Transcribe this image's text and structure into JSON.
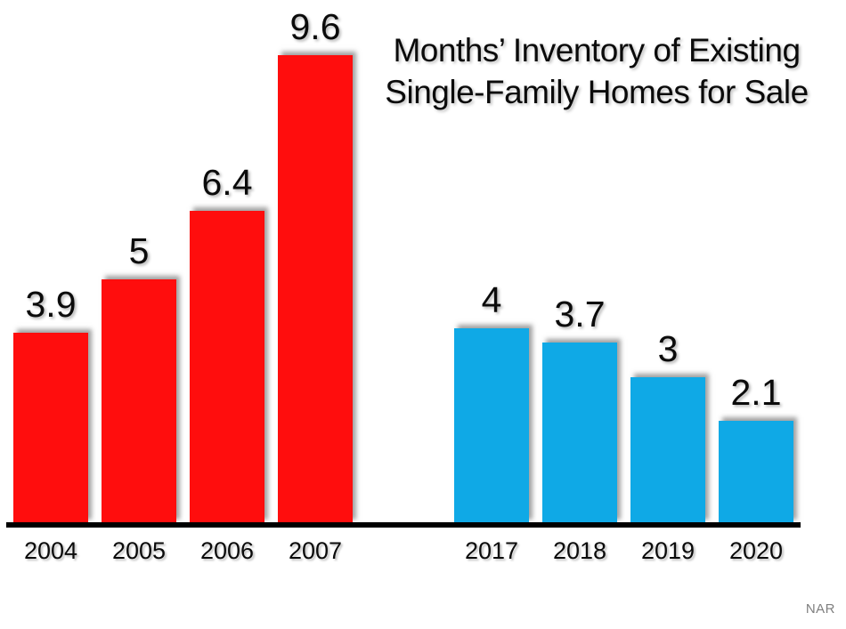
{
  "title": {
    "line1": "Months’ Inventory of Existing",
    "line2": "Single-Family Homes for Sale"
  },
  "source": "NAR",
  "colors": {
    "red_bar": "#FF0D0D",
    "blue_bar": "#0FA9E6",
    "axis": "#000000",
    "label_text": "#0B0B0B",
    "source_text": "#7F7F7F"
  },
  "chart_data": {
    "type": "bar",
    "title": "Months’ Inventory of Existing Single-Family Homes for Sale",
    "xlabel": "",
    "ylabel": "",
    "ylim": [
      0,
      10
    ],
    "grid": false,
    "legend_position": "none",
    "axis_shown": "x-baseline-only",
    "source": "NAR",
    "series": [
      {
        "name": "2004-2007",
        "color": "#FF0D0D",
        "points": [
          {
            "x": "2004",
            "y": 3.9,
            "label": "3.9"
          },
          {
            "x": "2005",
            "y": 5,
            "label": "5"
          },
          {
            "x": "2006",
            "y": 6.4,
            "label": "6.4"
          },
          {
            "x": "2007",
            "y": 9.6,
            "label": "9.6"
          }
        ]
      },
      {
        "name": "2017-2020",
        "color": "#0FA9E6",
        "points": [
          {
            "x": "2017",
            "y": 4,
            "label": "4"
          },
          {
            "x": "2018",
            "y": 3.7,
            "label": "3.7"
          },
          {
            "x": "2019",
            "y": 3,
            "label": "3"
          },
          {
            "x": "2020",
            "y": 2.1,
            "label": "2.1"
          }
        ]
      }
    ]
  }
}
